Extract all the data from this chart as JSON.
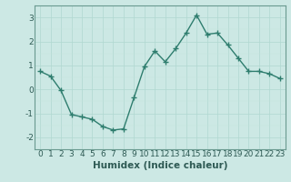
{
  "x": [
    0,
    1,
    2,
    3,
    4,
    5,
    6,
    7,
    8,
    9,
    10,
    11,
    12,
    13,
    14,
    15,
    16,
    17,
    18,
    19,
    20,
    21,
    22,
    23
  ],
  "y": [
    0.75,
    0.55,
    -0.05,
    -1.05,
    -1.15,
    -1.25,
    -1.55,
    -1.7,
    -1.65,
    -0.35,
    0.95,
    1.6,
    1.15,
    1.7,
    2.35,
    3.1,
    2.3,
    2.35,
    1.85,
    1.3,
    0.75,
    0.75,
    0.65,
    0.45
  ],
  "line_color": "#2e7d6e",
  "marker": "+",
  "marker_color": "#2e7d6e",
  "bg_color": "#cce8e4",
  "grid_major_color": "#b0d8d0",
  "grid_minor_color": "#c4e4de",
  "xlabel": "Humidex (Indice chaleur)",
  "xlim": [
    -0.5,
    23.5
  ],
  "ylim": [
    -2.5,
    3.5
  ],
  "yticks": [
    -2,
    -1,
    0,
    1,
    2,
    3
  ],
  "xticks": [
    0,
    1,
    2,
    3,
    4,
    5,
    6,
    7,
    8,
    9,
    10,
    11,
    12,
    13,
    14,
    15,
    16,
    17,
    18,
    19,
    20,
    21,
    22,
    23
  ],
  "xlabel_fontsize": 7.5,
  "tick_fontsize": 6.5,
  "line_width": 1.0,
  "spine_color": "#6a9a90"
}
